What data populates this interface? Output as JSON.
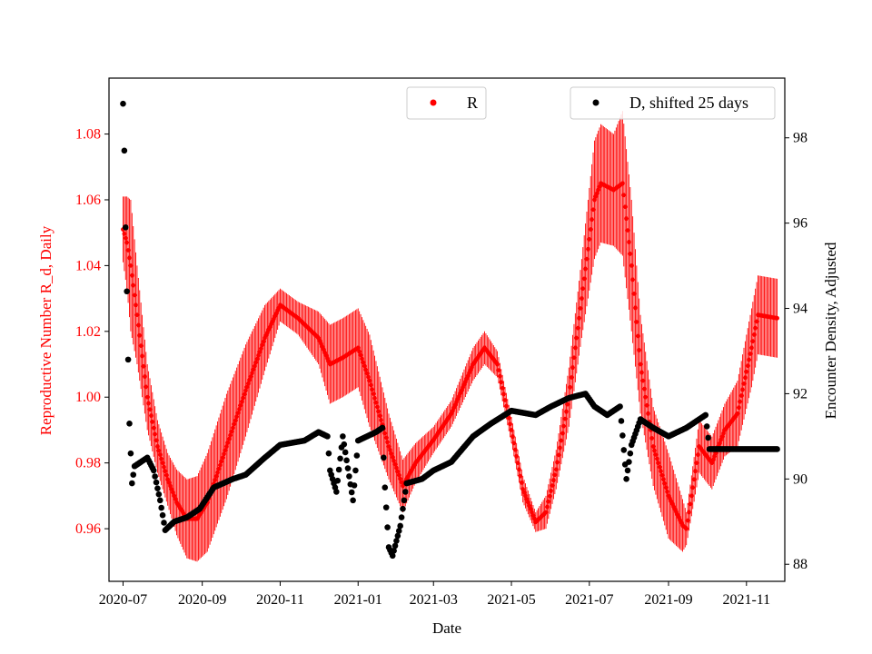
{
  "chart_data": {
    "type": "scatter",
    "xlabel": "Date",
    "ylabel_left": "Reproductive Number R_d, Daily",
    "ylabel_right": "Encounter Density, Adjusted",
    "x_range": [
      "2020-06-20",
      "2021-12-01"
    ],
    "ylim_left": [
      0.944,
      1.097
    ],
    "ylim_right": [
      87.6,
      99.4
    ],
    "x_ticks": [
      "2020-07-01",
      "2020-09-01",
      "2020-11-01",
      "2021-01-01",
      "2021-03-01",
      "2021-05-01",
      "2021-07-01",
      "2021-09-01",
      "2021-11-01"
    ],
    "x_tick_labels": [
      "2020-07",
      "2020-09",
      "2020-11",
      "2021-01",
      "2021-03",
      "2021-05",
      "2021-07",
      "2021-09",
      "2021-11"
    ],
    "y_ticks_left": [
      0.96,
      0.98,
      1.0,
      1.02,
      1.04,
      1.06,
      1.08
    ],
    "y_tick_labels_left": [
      "0.96",
      "0.98",
      "1.00",
      "1.02",
      "1.04",
      "1.06",
      "1.08"
    ],
    "y_ticks_right": [
      88,
      90,
      92,
      94,
      96,
      98
    ],
    "y_tick_labels_right": [
      "88",
      "90",
      "92",
      "94",
      "96",
      "98"
    ],
    "colors": {
      "r_series": "#ff0000",
      "d_series": "#000000",
      "left_axis": "#ff0000"
    },
    "legends": [
      {
        "label": "R",
        "color": "#ff0000",
        "position": "top-center"
      },
      {
        "label": "D, shifted 25 days",
        "color": "#000000",
        "position": "top-right"
      }
    ],
    "series": [
      {
        "name": "R",
        "axis": "left",
        "marker": "dot",
        "error_bars": true,
        "keypoints": [
          [
            "2020-07-01",
            1.051,
            0.01
          ],
          [
            "2020-07-04",
            1.047,
            0.014
          ],
          [
            "2020-07-07",
            1.04,
            0.02
          ],
          [
            "2020-07-12",
            1.025,
            0.015
          ],
          [
            "2020-07-20",
            1.0,
            0.01
          ],
          [
            "2020-07-28",
            0.985,
            0.008
          ],
          [
            "2020-08-05",
            0.975,
            0.008
          ],
          [
            "2020-08-12",
            0.968,
            0.01
          ],
          [
            "2020-08-20",
            0.963,
            0.012
          ],
          [
            "2020-08-28",
            0.963,
            0.013
          ],
          [
            "2020-09-05",
            0.968,
            0.015
          ],
          [
            "2020-09-20",
            0.985,
            0.016
          ],
          [
            "2020-10-05",
            1.002,
            0.014
          ],
          [
            "2020-10-20",
            1.018,
            0.01
          ],
          [
            "2020-11-01",
            1.028,
            0.005
          ],
          [
            "2020-11-15",
            1.024,
            0.005
          ],
          [
            "2020-12-01",
            1.018,
            0.008
          ],
          [
            "2020-12-10",
            1.01,
            0.012
          ],
          [
            "2020-12-20",
            1.012,
            0.012
          ],
          [
            "2021-01-01",
            1.015,
            0.012
          ],
          [
            "2021-01-10",
            1.005,
            0.014
          ],
          [
            "2021-01-25",
            0.985,
            0.01
          ],
          [
            "2021-02-05",
            0.973,
            0.008
          ],
          [
            "2021-02-15",
            0.98,
            0.006
          ],
          [
            "2021-03-01",
            0.987,
            0.004
          ],
          [
            "2021-03-15",
            0.995,
            0.004
          ],
          [
            "2021-04-01",
            1.01,
            0.005
          ],
          [
            "2021-04-10",
            1.015,
            0.005
          ],
          [
            "2021-04-20",
            1.01,
            0.004
          ],
          [
            "2021-05-01",
            0.99,
            0.004
          ],
          [
            "2021-05-10",
            0.972,
            0.004
          ],
          [
            "2021-05-20",
            0.962,
            0.003
          ],
          [
            "2021-05-28",
            0.965,
            0.005
          ],
          [
            "2021-06-05",
            0.978,
            0.006
          ],
          [
            "2021-06-15",
            1.0,
            0.009
          ],
          [
            "2021-06-25",
            1.03,
            0.012
          ],
          [
            "2021-07-05",
            1.06,
            0.018
          ],
          [
            "2021-07-10",
            1.065,
            0.018
          ],
          [
            "2021-07-20",
            1.063,
            0.017
          ],
          [
            "2021-07-27",
            1.065,
            0.022
          ],
          [
            "2021-08-03",
            1.04,
            0.02
          ],
          [
            "2021-08-10",
            1.01,
            0.015
          ],
          [
            "2021-08-20",
            0.985,
            0.012
          ],
          [
            "2021-09-01",
            0.97,
            0.013
          ],
          [
            "2021-09-12",
            0.961,
            0.008
          ],
          [
            "2021-09-15",
            0.96,
            0.005
          ],
          [
            "2021-09-25",
            0.985,
            0.008
          ],
          [
            "2021-10-05",
            0.98,
            0.008
          ],
          [
            "2021-10-15",
            0.99,
            0.008
          ],
          [
            "2021-10-25",
            0.995,
            0.01
          ],
          [
            "2021-11-05",
            1.015,
            0.012
          ],
          [
            "2021-11-10",
            1.025,
            0.012
          ],
          [
            "2021-11-25",
            1.024,
            0.012
          ]
        ]
      },
      {
        "name": "D, shifted 25 days",
        "axis": "right",
        "marker": "dot",
        "keypoints": [
          [
            "2020-07-01",
            98.8
          ],
          [
            "2020-07-02",
            97.7
          ],
          [
            "2020-07-03",
            95.9
          ],
          [
            "2020-07-04",
            94.4
          ],
          [
            "2020-07-05",
            92.8
          ],
          [
            "2020-07-06",
            91.3
          ],
          [
            "2020-07-08",
            89.9
          ],
          [
            "2020-07-10",
            90.3
          ],
          [
            "2020-07-15",
            90.4
          ],
          [
            "2020-07-20",
            90.5
          ],
          [
            "2020-07-25",
            90.2
          ],
          [
            "2020-07-30",
            89.5
          ],
          [
            "2020-08-03",
            88.8
          ],
          [
            "2020-08-10",
            89.0
          ],
          [
            "2020-08-20",
            89.1
          ],
          [
            "2020-08-30",
            89.3
          ],
          [
            "2020-09-10",
            89.8
          ],
          [
            "2020-09-25",
            90.0
          ],
          [
            "2020-10-05",
            90.1
          ],
          [
            "2020-10-20",
            90.5
          ],
          [
            "2020-11-01",
            90.8
          ],
          [
            "2020-11-20",
            90.9
          ],
          [
            "2020-12-01",
            91.1
          ],
          [
            "2020-12-08",
            91.0
          ],
          [
            "2020-12-10",
            90.2
          ],
          [
            "2020-12-15",
            89.7
          ],
          [
            "2020-12-20",
            91.0
          ],
          [
            "2020-12-28",
            89.5
          ],
          [
            "2021-01-01",
            90.9
          ],
          [
            "2021-01-15",
            91.1
          ],
          [
            "2021-01-20",
            91.2
          ],
          [
            "2021-01-22",
            89.8
          ],
          [
            "2021-01-25",
            88.4
          ],
          [
            "2021-01-28",
            88.2
          ],
          [
            "2021-02-03",
            88.9
          ],
          [
            "2021-02-08",
            89.9
          ],
          [
            "2021-02-20",
            90.0
          ],
          [
            "2021-03-01",
            90.2
          ],
          [
            "2021-03-15",
            90.4
          ],
          [
            "2021-04-01",
            91.0
          ],
          [
            "2021-04-15",
            91.3
          ],
          [
            "2021-05-01",
            91.6
          ],
          [
            "2021-05-20",
            91.5
          ],
          [
            "2021-06-01",
            91.7
          ],
          [
            "2021-06-15",
            91.9
          ],
          [
            "2021-06-28",
            92.0
          ],
          [
            "2021-07-05",
            91.7
          ],
          [
            "2021-07-15",
            91.5
          ],
          [
            "2021-07-25",
            91.7
          ],
          [
            "2021-07-30",
            90.0
          ],
          [
            "2021-08-03",
            90.8
          ],
          [
            "2021-08-10",
            91.4
          ],
          [
            "2021-08-20",
            91.2
          ],
          [
            "2021-09-01",
            91.0
          ],
          [
            "2021-09-15",
            91.2
          ],
          [
            "2021-09-30",
            91.5
          ],
          [
            "2021-10-03",
            90.7
          ],
          [
            "2021-11-25",
            90.7
          ]
        ]
      }
    ]
  }
}
